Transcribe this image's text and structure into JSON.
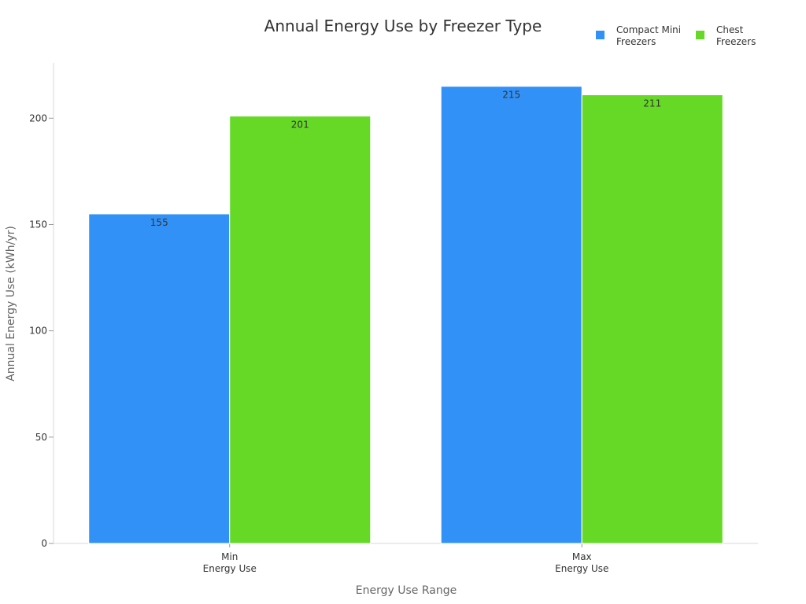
{
  "chart_data": {
    "type": "bar",
    "title": "Annual Energy Use by Freezer Type",
    "xlabel": "Energy Use Range",
    "ylabel": "Annual Energy Use (kWh/yr)",
    "categories": [
      [
        "Min",
        "Energy Use"
      ],
      [
        "Max",
        "Energy Use"
      ]
    ],
    "series": [
      {
        "name": [
          "Compact Mini",
          "Freezers"
        ],
        "values": [
          155,
          215
        ],
        "color": "#3291f7"
      },
      {
        "name": [
          "Chest",
          "Freezers"
        ],
        "values": [
          201,
          211
        ],
        "color": "#66d926"
      }
    ],
    "ylim": [
      0,
      226
    ],
    "yticks": [
      0,
      50,
      100,
      150,
      200
    ],
    "grid": false,
    "legend_position": "top-right"
  }
}
